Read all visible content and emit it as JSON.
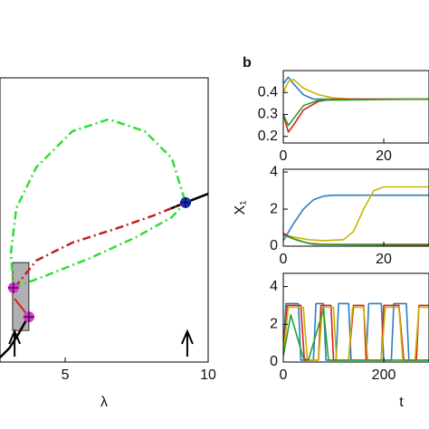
{
  "panel_label": "b",
  "chart_data": [
    {
      "type": "line",
      "xlabel": "λ",
      "xlim": [
        2.72,
        10
      ],
      "ylim": [
        0,
        1
      ],
      "xticks": [
        5,
        10
      ],
      "series": [
        {
          "color": "#000000",
          "width": 2.5,
          "dash": "solid",
          "x": [
            2.72,
            3.04,
            3.35,
            3.67,
            null,
            8.57,
            9.21,
            10
          ],
          "values": [
            0.016,
            0.048,
            0.096,
            0.153,
            null,
            0.535,
            0.561,
            0.592
          ]
        },
        {
          "color": "#d62020",
          "width": 2,
          "dash": "solid",
          "x": [
            3.23,
            3.73
          ],
          "values": [
            0.223,
            0.159
          ]
        },
        {
          "color": "#c0201c",
          "width": 2.5,
          "dash": "dashdot",
          "x": [
            3.23,
            3.99,
            5.25,
            6.83,
            8.1,
            9.21
          ],
          "values": [
            0.261,
            0.357,
            0.42,
            0.471,
            0.516,
            0.561
          ]
        },
        {
          "color": "#33dd33",
          "width": 2.5,
          "dash": "dashdot",
          "x": [
            3.19,
            3.1,
            3.29,
            3.99,
            5.25,
            6.52,
            7.78,
            8.73,
            9.21
          ],
          "values": [
            0.261,
            0.382,
            0.541,
            0.685,
            0.812,
            0.854,
            0.812,
            0.717,
            0.561
          ]
        },
        {
          "color": "#33dd33",
          "width": 2.5,
          "dash": "dashdot",
          "x": [
            3.19,
            4.3,
            5.88,
            7.47,
            8.73,
            9.21
          ],
          "values": [
            0.261,
            0.303,
            0.366,
            0.439,
            0.51,
            0.561
          ]
        }
      ],
      "shade": {
        "x": [
          3.16,
          3.73
        ],
        "y": [
          0.111,
          0.35
        ],
        "color": "#b0b0b0"
      },
      "markers": [
        {
          "x": 3.19,
          "y": 0.261,
          "color": "#dd33dd"
        },
        {
          "x": 3.73,
          "y": 0.159,
          "color": "#dd33dd"
        },
        {
          "x": 9.21,
          "y": 0.561,
          "color": "#1a2fbf"
        }
      ],
      "arrows_x": [
        3.23,
        9.27
      ]
    },
    {
      "type": "line",
      "xlim": [
        0,
        29
      ],
      "ylim": [
        0.17,
        0.5
      ],
      "xticks": [
        0,
        20
      ],
      "yticks": [
        0.2,
        0.3,
        0.4
      ],
      "series": [
        {
          "color": "#2a7fc0",
          "x": [
            0,
            1,
            2,
            4,
            6,
            10,
            29
          ],
          "values": [
            0.44,
            0.47,
            0.44,
            0.39,
            0.37,
            0.37,
            0.37
          ]
        },
        {
          "color": "#c8b400",
          "x": [
            0,
            1,
            2,
            4,
            7,
            10,
            14,
            29
          ],
          "values": [
            0.4,
            0.45,
            0.46,
            0.42,
            0.39,
            0.375,
            0.37,
            0.37
          ]
        },
        {
          "color": "#d62020",
          "x": [
            0,
            1,
            2,
            4,
            7,
            10,
            29
          ],
          "values": [
            0.3,
            0.22,
            0.25,
            0.32,
            0.36,
            0.37,
            0.37
          ]
        },
        {
          "color": "#2aa02a",
          "x": [
            0,
            1,
            2,
            4,
            7,
            29
          ],
          "values": [
            0.3,
            0.25,
            0.28,
            0.34,
            0.365,
            0.37
          ]
        }
      ]
    },
    {
      "type": "line",
      "ylabel": "X₁",
      "xlim": [
        0,
        29
      ],
      "ylim": [
        0,
        4.15
      ],
      "xticks": [
        0,
        20
      ],
      "yticks": [
        0,
        2,
        4
      ],
      "series": [
        {
          "color": "#2a7fc0",
          "x": [
            0,
            2,
            4,
            6,
            8,
            10,
            29
          ],
          "values": [
            0.3,
            1.2,
            2.0,
            2.5,
            2.7,
            2.75,
            2.75
          ]
        },
        {
          "color": "#c8b400",
          "x": [
            0,
            2,
            5,
            8,
            12,
            14,
            16,
            18,
            20,
            29
          ],
          "values": [
            0.6,
            0.5,
            0.35,
            0.3,
            0.35,
            0.8,
            2.0,
            3.0,
            3.2,
            3.2
          ]
        },
        {
          "color": "#d62020",
          "x": [
            0,
            2,
            5,
            8,
            29
          ],
          "values": [
            0.7,
            0.4,
            0.15,
            0.1,
            0.1
          ]
        },
        {
          "color": "#2aa02a",
          "x": [
            0,
            3,
            6,
            29
          ],
          "values": [
            0.6,
            0.3,
            0.1,
            0.05
          ]
        }
      ]
    },
    {
      "type": "line",
      "xlabel": "t",
      "xlim": [
        0,
        290
      ],
      "ylim": [
        0,
        4.7
      ],
      "xticks": [
        0,
        200
      ],
      "yticks": [
        0,
        2,
        4
      ],
      "series": [
        {
          "color": "#2a7fc0",
          "x": [
            0,
            5,
            30,
            35,
            60,
            65,
            80,
            85,
            105,
            110,
            130,
            135,
            165,
            170,
            195,
            200,
            215,
            220,
            245,
            250,
            290
          ],
          "values": [
            0.3,
            3.1,
            3.1,
            0.1,
            0.1,
            3.1,
            3.1,
            0.1,
            0.1,
            3.1,
            3.1,
            0.1,
            0.1,
            3.1,
            3.1,
            0.1,
            0.1,
            3.1,
            3.1,
            0.1,
            0.1
          ]
        },
        {
          "color": "#d62020",
          "x": [
            0,
            8,
            35,
            42,
            70,
            75,
            95,
            100,
            130,
            140,
            160,
            165,
            195,
            200,
            230,
            240,
            265,
            270,
            290
          ],
          "values": [
            0.5,
            3.0,
            3.0,
            0.1,
            0.1,
            3.0,
            3.0,
            0.1,
            0.1,
            3.0,
            3.0,
            0.1,
            0.1,
            3.0,
            3.0,
            0.1,
            0.1,
            3.0,
            3.0
          ]
        },
        {
          "color": "#c8b400",
          "x": [
            0,
            10,
            40,
            48,
            70,
            78,
            100,
            106,
            130,
            138,
            160,
            168,
            195,
            203,
            230,
            238,
            262,
            270,
            290
          ],
          "values": [
            0.4,
            2.9,
            2.9,
            0.1,
            0.1,
            2.9,
            2.9,
            0.1,
            0.1,
            2.9,
            2.9,
            0.1,
            0.1,
            2.9,
            2.9,
            0.1,
            0.1,
            2.9,
            2.9
          ]
        },
        {
          "color": "#2aa02a",
          "x": [
            0,
            15,
            40,
            50,
            80,
            90,
            290
          ],
          "values": [
            0.3,
            2.5,
            0.2,
            0.1,
            2.8,
            0.1,
            0.1
          ]
        }
      ]
    }
  ]
}
